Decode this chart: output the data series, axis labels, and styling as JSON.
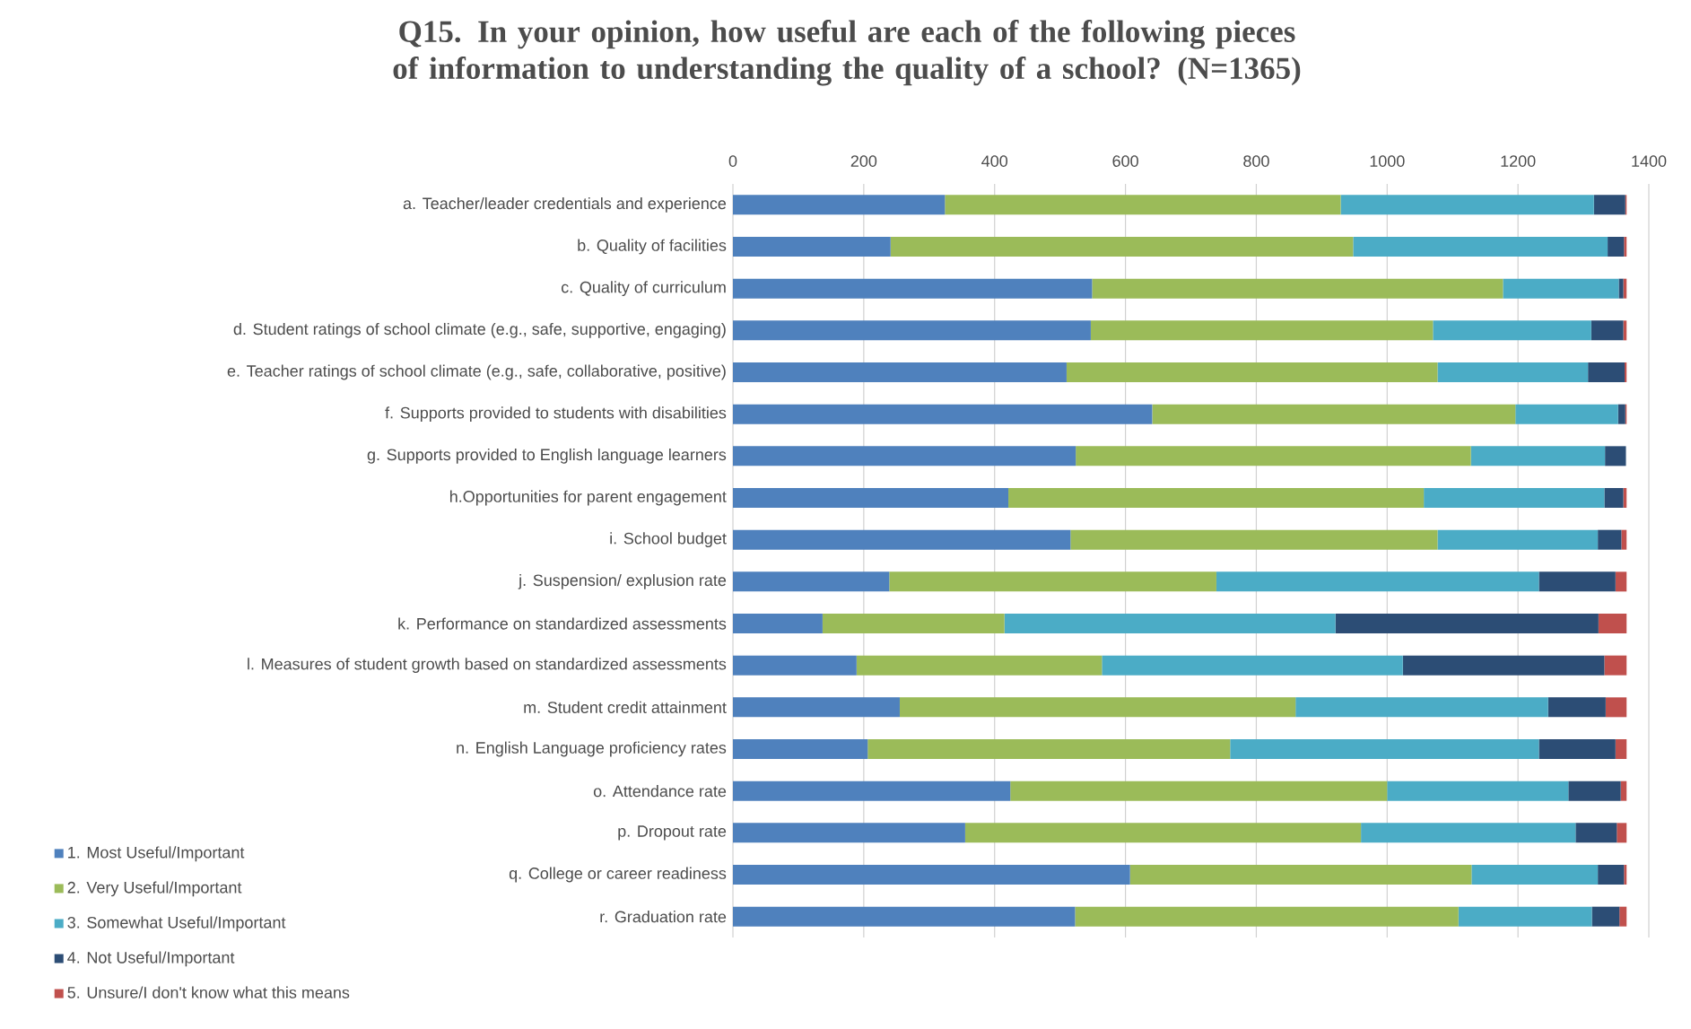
{
  "chart_data": {
    "type": "bar",
    "orientation": "horizontal",
    "stacked": true,
    "title": "Q15. In your opinion, how useful are each of the following pieces of information to understanding the quality of a school? (N=1365)",
    "categories": [
      "a. Teacher/leader credentials and experience",
      "b. Quality of facilities",
      "c. Quality of curriculum",
      "d. Student ratings of school climate (e.g., safe, supportive, engaging)",
      "e. Teacher ratings of school climate (e.g., safe, collaborative, positive)",
      "f. Supports provided to students with disabilities",
      "g. Supports provided to English language learners",
      "h.Opportunities for parent engagement",
      "i. School budget",
      "j. Suspension/ explusion rate",
      "k. Performance on standardized assessments",
      "l. Measures of student growth based on standardized assessments",
      "m. Student credit attainment",
      "n. English Language proficiency rates",
      "o. Attendance rate",
      "p. Dropout rate",
      "q. College or career readiness",
      "r. Graduation rate"
    ],
    "series": [
      {
        "name": "1. Most Useful/Important",
        "color": "#4f81bd",
        "values": [
          324,
          241,
          549,
          547,
          510,
          641,
          524,
          421,
          516,
          239,
          137,
          189,
          255,
          206,
          424,
          355,
          607,
          523
        ]
      },
      {
        "name": "2. Very Useful/Important",
        "color": "#9bbb59",
        "values": [
          605,
          707,
          628,
          523,
          567,
          555,
          604,
          635,
          561,
          500,
          278,
          375,
          605,
          554,
          576,
          605,
          522,
          586
        ]
      },
      {
        "name": "3. Somewhat Useful/Important",
        "color": "#4bacc6",
        "values": [
          387,
          389,
          177,
          242,
          230,
          157,
          205,
          276,
          245,
          493,
          506,
          460,
          386,
          472,
          277,
          328,
          193,
          204
        ]
      },
      {
        "name": "4. Not Useful/Important",
        "color": "#2c4d75",
        "values": [
          48,
          25,
          7,
          49,
          56,
          11,
          32,
          29,
          36,
          117,
          402,
          308,
          88,
          117,
          80,
          63,
          40,
          42
        ]
      },
      {
        "name": "5. Unsure/I don't know what this means",
        "color": "#c0504d",
        "values": [
          2,
          4,
          5,
          5,
          3,
          2,
          0,
          5,
          8,
          17,
          43,
          34,
          32,
          17,
          9,
          15,
          4,
          11
        ]
      }
    ],
    "xlim": [
      0,
      1400
    ],
    "xticks": [
      0,
      200,
      400,
      600,
      800,
      1000,
      1200,
      1400
    ],
    "grid": "x",
    "legend": "bottom left"
  }
}
